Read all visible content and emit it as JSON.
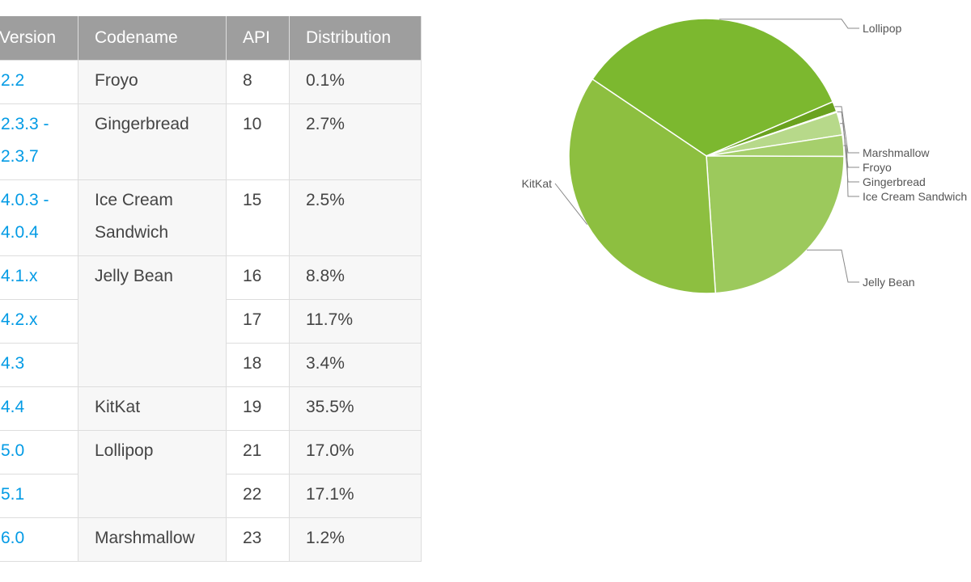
{
  "table": {
    "headers": [
      "Version",
      "Codename",
      "API",
      "Distribution"
    ],
    "rows": [
      {
        "version": "2.2",
        "codename": "Froyo",
        "api": "8",
        "distribution": "0.1%"
      },
      {
        "version": "2.3.3 -\n2.3.7",
        "codename": "Gingerbread",
        "api": "10",
        "distribution": "2.7%"
      },
      {
        "version": "4.0.3 -\n4.0.4",
        "codename": "Ice Cream\nSandwich",
        "api": "15",
        "distribution": "2.5%"
      },
      {
        "version": "4.1.x",
        "codename": "Jelly Bean",
        "api": "16",
        "distribution": "8.8%"
      },
      {
        "version": "4.2.x",
        "codename": "",
        "api": "17",
        "distribution": "11.7%"
      },
      {
        "version": "4.3",
        "codename": "",
        "api": "18",
        "distribution": "3.4%"
      },
      {
        "version": "4.4",
        "codename": "KitKat",
        "api": "19",
        "distribution": "35.5%"
      },
      {
        "version": "5.0",
        "codename": "Lollipop",
        "api": "21",
        "distribution": "17.0%"
      },
      {
        "version": "5.1",
        "codename": "",
        "api": "22",
        "distribution": "17.1%"
      },
      {
        "version": "6.0",
        "codename": "Marshmallow",
        "api": "23",
        "distribution": "1.2%"
      }
    ],
    "codename_groups": [
      {
        "text": "Froyo",
        "rows": 1
      },
      {
        "text": "Gingerbread",
        "rows": 1
      },
      {
        "text": "Ice Cream\nSandwich",
        "rows": 1
      },
      {
        "text": "Jelly Bean",
        "rows": 3
      },
      {
        "text": "KitKat",
        "rows": 1
      },
      {
        "text": "Lollipop",
        "rows": 2
      },
      {
        "text": "Marshmallow",
        "rows": 1
      }
    ],
    "distribution_groups": [
      {
        "rows": 1
      },
      {
        "rows": 1
      },
      {
        "rows": 1
      },
      {
        "rows": 1
      },
      {
        "rows": 1
      },
      {
        "rows": 1
      },
      {
        "rows": 1
      },
      {
        "rows": 1
      },
      {
        "rows": 1
      },
      {
        "rows": 1
      }
    ]
  },
  "colors": {
    "header_bg": "#9e9e9e",
    "link": "#039be5",
    "border": "#dddddd"
  },
  "chart_data": {
    "type": "pie",
    "start_angle_deg": -56,
    "slices": [
      {
        "label": "Lollipop",
        "value": 34.1,
        "color": "#7cb82f"
      },
      {
        "label": "Marshmallow",
        "value": 1.2,
        "color": "#6aa21f"
      },
      {
        "label": "Froyo",
        "value": 0.1,
        "color": "#a4cf68"
      },
      {
        "label": "Gingerbread",
        "value": 2.7,
        "color": "#b7d98a"
      },
      {
        "label": "Ice Cream Sandwich",
        "value": 2.5,
        "color": "#a6cf6c"
      },
      {
        "label": "Jelly Bean",
        "value": 23.9,
        "color": "#9cc95c"
      },
      {
        "label": "KitKat",
        "value": 35.5,
        "color": "#8dbf40"
      }
    ],
    "slice_border": "#ffffff",
    "label_line_color": "#888888"
  }
}
